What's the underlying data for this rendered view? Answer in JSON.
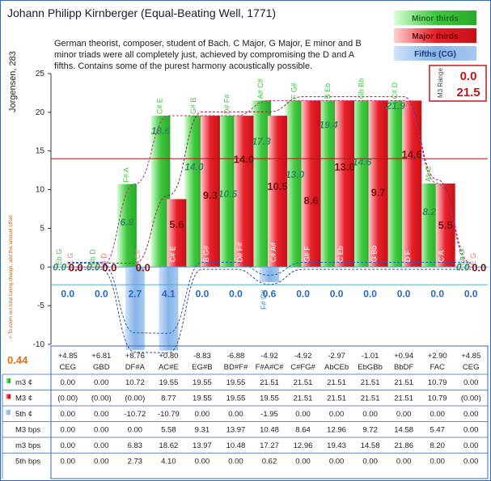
{
  "title": "Johann Philipp Kirnberger (Equal-Beating Well, 1771)",
  "description_lines": [
    "German theorist, composer, student of Bach. C Major, G Major, E minor and B",
    "minor triads were all completely just, achieved by compromising the D and A",
    "fifths. Contains some of the purest harmony acoustically possible."
  ],
  "ylabel": "Jorgensen, 283",
  "legend": {
    "minor": "Minor thirds",
    "major": "Major thirds",
    "fifths": "Fifths (CG)"
  },
  "m3_range": {
    "label": "M3 Range",
    "min": "0.0",
    "max": "21.5"
  },
  "side_note": "<-To zoom out total tuning change, add this amount offset.",
  "side_value": "0.44",
  "colors": {
    "major": "#e8202a",
    "minor": "#3ec83e",
    "fifth": "#86b4e8",
    "hline": "#b01818",
    "axis": "#5aaad8"
  },
  "chart_data": {
    "type": "bar",
    "ylim": [
      -10,
      25
    ],
    "yticks": [
      -10,
      -5,
      0,
      5,
      10,
      15,
      20,
      25
    ],
    "reference_line": 14,
    "categories": [
      "CEG",
      "GBD",
      "DF#A",
      "AC#E",
      "EG#B",
      "BD#F#",
      "F#A#C#",
      "C#FG#",
      "AbCEb",
      "EbGBb",
      "BbDF",
      "FAC",
      "CEG"
    ],
    "deviation": [
      "+4.85",
      "+6.81",
      "+8.76",
      "+0.80",
      "-8.83",
      "-6.88",
      "-4.92",
      "-4.92",
      "-2.97",
      "-1.01",
      "+0.94",
      "+2.90",
      "+4.85"
    ],
    "major_note_labels": [
      "E G",
      "B D",
      "A C#",
      "C# E",
      "B G#",
      "D# F#",
      "C# A#",
      "G# F",
      "C Eb",
      "G Bb",
      "D F",
      "C A",
      "E G"
    ],
    "minor_note_labels": [
      "Eb G",
      "Bb D",
      "F# A",
      "C# E",
      "G# B",
      "D# F#",
      "A# C#",
      "F G#",
      "B Eb",
      "Gb Bb",
      "C# D",
      "Ab C",
      "Eb G"
    ],
    "fifth_note_labels": [
      "",
      "",
      "",
      "",
      "",
      "",
      "F# C#",
      "",
      "",
      "",
      "",
      "",
      ""
    ],
    "series": [
      {
        "name": "m3 ¢",
        "values": [
          0.0,
          0.0,
          10.72,
          19.55,
          19.55,
          19.55,
          21.51,
          21.51,
          21.51,
          21.51,
          21.51,
          10.79,
          0.0
        ]
      },
      {
        "name": "M3 ¢",
        "values": [
          0.0,
          0.0,
          0.0,
          8.77,
          19.55,
          19.55,
          19.55,
          21.51,
          21.51,
          21.51,
          21.51,
          10.79,
          0.0
        ]
      },
      {
        "name": "5th ¢",
        "values": [
          0.0,
          0.0,
          -10.72,
          -10.79,
          0.0,
          0.0,
          -1.95,
          0.0,
          0.0,
          0.0,
          0.0,
          0.0,
          0.0
        ]
      },
      {
        "name": "M3 bps",
        "values": [
          0.0,
          0.0,
          0.0,
          5.58,
          9.31,
          13.97,
          10.48,
          8.64,
          12.96,
          9.72,
          14.58,
          5.47,
          0.0
        ]
      },
      {
        "name": "m3 bps",
        "values": [
          0.0,
          0.0,
          6.83,
          18.62,
          13.97,
          10.48,
          17.27,
          12.96,
          19.43,
          14.58,
          21.86,
          8.2,
          0.0
        ]
      },
      {
        "name": "5th bps",
        "values": [
          0.0,
          0.0,
          2.73,
          4.1,
          0.0,
          0.0,
          0.62,
          0.0,
          0.0,
          0.0,
          0.0,
          0.0,
          0.0
        ]
      }
    ],
    "table_rows": [
      {
        "label": "m3 ¢",
        "values": [
          "0.00",
          "0.00",
          "10.72",
          "19.55",
          "19.55",
          "19.55",
          "21.51",
          "21.51",
          "21.51",
          "21.51",
          "21.51",
          "10.79",
          "0.00"
        ]
      },
      {
        "label": "M3 ¢",
        "values": [
          "(0.00)",
          "(0.00)",
          "(0.00)",
          "8.77",
          "19.55",
          "19.55",
          "19.55",
          "21.51",
          "21.51",
          "21.51",
          "21.51",
          "10.79",
          "(0.00)"
        ]
      },
      {
        "label": "5th ¢",
        "values": [
          "0.00",
          "0.00",
          "-10.72",
          "-10.79",
          "0.00",
          "0.00",
          "-1.95",
          "0.00",
          "0.00",
          "0.00",
          "0.00",
          "0.00",
          "0.00"
        ]
      },
      {
        "label": "M3 bps",
        "values": [
          "0.00",
          "0.00",
          "0.00",
          "5.58",
          "9.31",
          "13.97",
          "10.48",
          "8.64",
          "12.96",
          "9.72",
          "14.58",
          "5.47",
          "0.00"
        ]
      },
      {
        "label": "m3 bps",
        "values": [
          "0.00",
          "0.00",
          "6.83",
          "18.62",
          "13.97",
          "10.48",
          "17.27",
          "12.96",
          "19.43",
          "14.58",
          "21.86",
          "8.20",
          "0.00"
        ]
      },
      {
        "label": "5th bps",
        "values": [
          "0.00",
          "0.00",
          "2.73",
          "4.10",
          "0.00",
          "0.00",
          "0.62",
          "0.00",
          "0.00",
          "0.00",
          "0.00",
          "0.00",
          "0.00"
        ]
      }
    ],
    "major_bps_labels": [
      "0.0",
      "0.0",
      "0.0",
      "5.6",
      "9.3",
      "14.0",
      "10.5",
      "8.6",
      "13.0",
      "9.7",
      "14.6",
      "5.5",
      "0.0"
    ],
    "minor_bps_labels": [
      "0.0",
      "0.0",
      "6.8",
      "18.6",
      "14.0",
      "10.5",
      "17.3",
      "13.0",
      "19.4",
      "14.6",
      "21.9",
      "8.2",
      "0.0"
    ],
    "fifth_bps_labels": [
      "0.0",
      "0.0",
      "2.7",
      "4.1",
      "0.0",
      "0.0",
      "0.6",
      "0.0",
      "0.0",
      "0.0",
      "0.0",
      "0.0",
      "0.0"
    ]
  }
}
